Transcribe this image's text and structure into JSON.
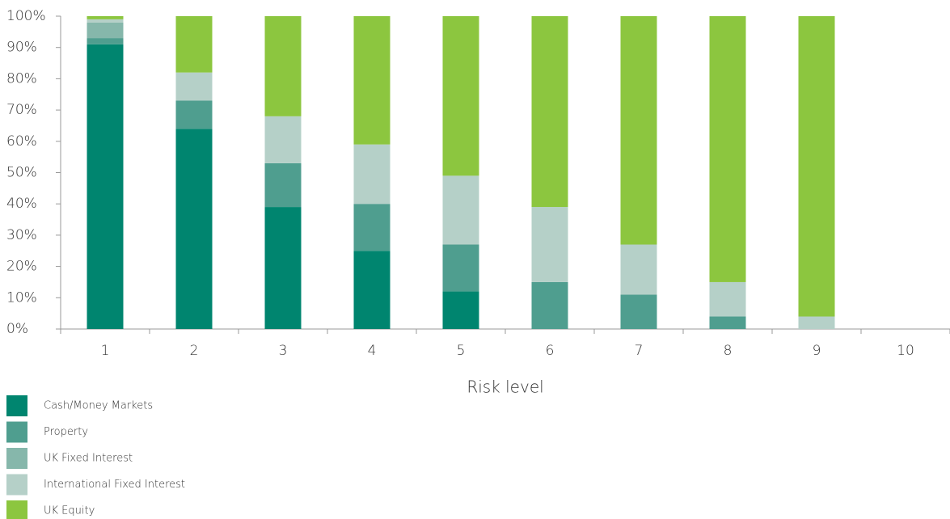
{
  "chart_data": {
    "type": "stacked_bar",
    "x_label": "Risk level",
    "categories": [
      "1",
      "2",
      "3",
      "4",
      "5",
      "6",
      "7",
      "8",
      "9",
      "10"
    ],
    "series": [
      {
        "name": "Cash/Money Markets",
        "color": "#00856f",
        "values": [
          91,
          64,
          39,
          25,
          12,
          0,
          0,
          0,
          0,
          0
        ]
      },
      {
        "name": "Property",
        "color": "#4f9e8f",
        "values": [
          2,
          9,
          14,
          15,
          15,
          15,
          11,
          4,
          0,
          0
        ]
      },
      {
        "name": "UK Fixed Interest",
        "color": "#86b7ab",
        "values": [
          5,
          0,
          0,
          0,
          0,
          0,
          0,
          0,
          0,
          0
        ]
      },
      {
        "name": "International Fixed Interest",
        "color": "#b5d0c8",
        "values": [
          1,
          9,
          15,
          19,
          22,
          24,
          16,
          11,
          4,
          0
        ]
      },
      {
        "name": "UK Equity",
        "color": "#8cc63f",
        "values": [
          1,
          18,
          32,
          41,
          51,
          61,
          73,
          85,
          96,
          0
        ]
      }
    ],
    "ylim": [
      0,
      100
    ],
    "yticks": [
      {
        "value": 0,
        "label": "0%"
      },
      {
        "value": 10,
        "label": "10%"
      },
      {
        "value": 20,
        "label": "20%"
      },
      {
        "value": 30,
        "label": "30%"
      },
      {
        "value": 40,
        "label": "40%"
      },
      {
        "value": 50,
        "label": "50%"
      },
      {
        "value": 60,
        "label": "60%"
      },
      {
        "value": 70,
        "label": "70%"
      },
      {
        "value": 80,
        "label": "80%"
      },
      {
        "value": 90,
        "label": "90%"
      },
      {
        "value": 100,
        "label": "100%"
      }
    ]
  }
}
